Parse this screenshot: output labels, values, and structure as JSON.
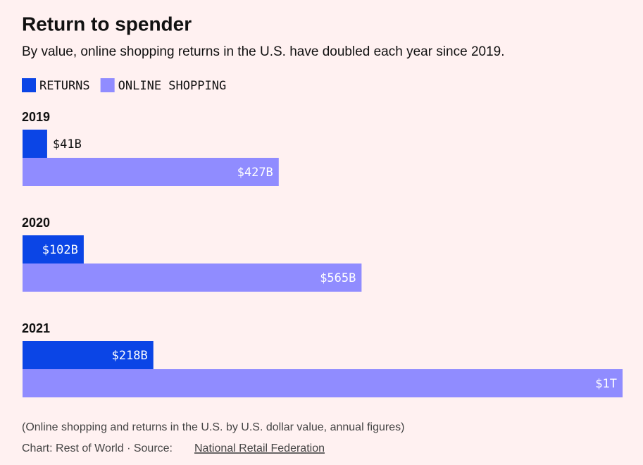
{
  "chart_data": {
    "type": "bar",
    "title": "Return to spender",
    "subtitle": "By value, online shopping returns in the U.S. have doubled each year since 2019.",
    "categories": [
      "2019",
      "2020",
      "2021"
    ],
    "series": [
      {
        "name": "RETURNS",
        "color": "#0b45e6",
        "values": [
          41,
          102,
          218
        ],
        "value_labels": [
          "$41B",
          "$102B",
          "$218B"
        ]
      },
      {
        "name": "ONLINE SHOPPING",
        "color": "#908cff",
        "values": [
          427,
          565,
          1000
        ],
        "value_labels": [
          "$427B",
          "$565B",
          "$1T"
        ]
      }
    ],
    "note": "(Online shopping and returns in the U.S. by U.S. dollar value, annual figures)",
    "credit": "Chart: Rest of World · Source:",
    "source": "National Retail Federation"
  }
}
